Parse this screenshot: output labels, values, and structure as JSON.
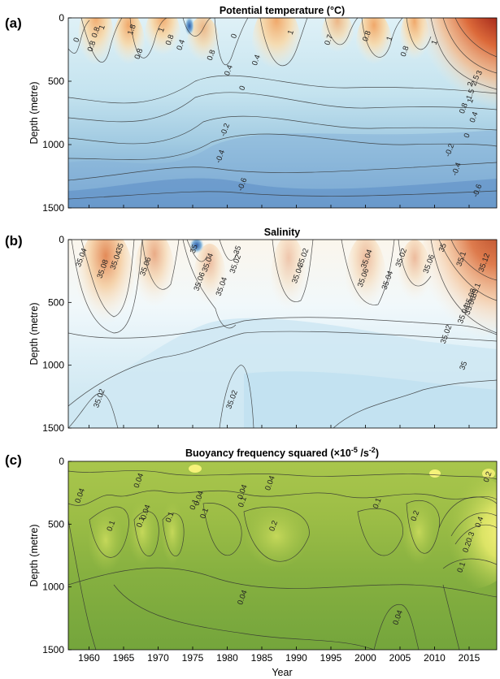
{
  "figure": {
    "xlabel": "Year"
  },
  "chart_data": [
    {
      "type": "heatmap",
      "panel_label": "(a)",
      "title": "Potential temperature (°C)",
      "ylabel": "Depth (metre)",
      "xlim": [
        1957,
        2019
      ],
      "ylim": [
        1500,
        0
      ],
      "xticks": [
        1960,
        1965,
        1970,
        1975,
        1980,
        1985,
        1990,
        1995,
        2000,
        2005,
        2010,
        2015
      ],
      "yticks": [
        0,
        500,
        1000,
        1500
      ],
      "colors": {
        "low": "#3f6fb5",
        "mid": "#eaf6fb",
        "high": "#7a1010"
      },
      "contour_labels": [
        {
          "text": "0",
          "year": 1958.5,
          "depth": 180
        },
        {
          "text": "0.8",
          "year": 1960.7,
          "depth": 230
        },
        {
          "text": "0.8",
          "year": 1961.3,
          "depth": 120
        },
        {
          "text": "1",
          "year": 1962.2,
          "depth": 80
        },
        {
          "text": "1.8",
          "year": 1966.5,
          "depth": 100
        },
        {
          "text": "0.8",
          "year": 1967.5,
          "depth": 290
        },
        {
          "text": "1",
          "year": 1970.8,
          "depth": 100
        },
        {
          "text": "0.8",
          "year": 1972,
          "depth": 180
        },
        {
          "text": "0.4",
          "year": 1973.6,
          "depth": 220
        },
        {
          "text": "0.8",
          "year": 1978,
          "depth": 300
        },
        {
          "text": "0.4",
          "year": 1980.5,
          "depth": 420
        },
        {
          "text": "0",
          "year": 1981.3,
          "depth": 150
        },
        {
          "text": "0",
          "year": 1982.5,
          "depth": 560
        },
        {
          "text": "0.4",
          "year": 1984.5,
          "depth": 340
        },
        {
          "text": "1",
          "year": 1989.5,
          "depth": 120
        },
        {
          "text": "0.7",
          "year": 1995,
          "depth": 180
        },
        {
          "text": "0.8",
          "year": 2000.5,
          "depth": 150
        },
        {
          "text": "1",
          "year": 2003.8,
          "depth": 170
        },
        {
          "text": "0.8",
          "year": 2006,
          "depth": 270
        },
        {
          "text": "1",
          "year": 2010.3,
          "depth": 200
        },
        {
          "text": "3",
          "year": 2016.8,
          "depth": 440
        },
        {
          "text": "2.5",
          "year": 2016.2,
          "depth": 500
        },
        {
          "text": "2",
          "year": 2015.5,
          "depth": 530
        },
        {
          "text": "1.5",
          "year": 2015.5,
          "depth": 610
        },
        {
          "text": "1",
          "year": 2015.5,
          "depth": 660
        },
        {
          "text": "0.8",
          "year": 2014.5,
          "depth": 720
        },
        {
          "text": "0.4",
          "year": 2016,
          "depth": 790
        },
        {
          "text": "0",
          "year": 2015,
          "depth": 935
        },
        {
          "text": "-0.2",
          "year": 2012.5,
          "depth": 1050
        },
        {
          "text": "-0.4",
          "year": 2013.5,
          "depth": 1200
        },
        {
          "text": "-0.6",
          "year": 2016.5,
          "depth": 1370
        },
        {
          "text": "-0.2",
          "year": 1980,
          "depth": 890
        },
        {
          "text": "-0.4",
          "year": 1979.3,
          "depth": 1100
        },
        {
          "text": "-0.6",
          "year": 1982.5,
          "depth": 1320
        }
      ]
    },
    {
      "type": "heatmap",
      "panel_label": "(b)",
      "title": "Salinity",
      "ylabel": "Depth (metre)",
      "xlim": [
        1957,
        2019
      ],
      "ylim": [
        1500,
        0
      ],
      "xticks": [
        1960,
        1965,
        1970,
        1975,
        1980,
        1985,
        1990,
        1995,
        2000,
        2005,
        2010,
        2015
      ],
      "yticks": [
        0,
        500,
        1000,
        1500
      ],
      "colors": {
        "low": "#2f5ea8",
        "mid": "#f3f9fb",
        "high": "#b84a28"
      },
      "contour_labels": [
        {
          "text": "35.04",
          "year": 1959.2,
          "depth": 150
        },
        {
          "text": "35.08",
          "year": 1962.3,
          "depth": 240
        },
        {
          "text": "35.04",
          "year": 1964.2,
          "depth": 170
        },
        {
          "text": "35",
          "year": 1964.8,
          "depth": 70
        },
        {
          "text": "35.06",
          "year": 1968.5,
          "depth": 220
        },
        {
          "text": "35",
          "year": 1975.5,
          "depth": 80
        },
        {
          "text": "35.04",
          "year": 1977.5,
          "depth": 190
        },
        {
          "text": "35.06",
          "year": 1976.3,
          "depth": 340
        },
        {
          "text": "35.04",
          "year": 1979.5,
          "depth": 380
        },
        {
          "text": "35.02",
          "year": 1981.5,
          "depth": 200
        },
        {
          "text": "35",
          "year": 1981.8,
          "depth": 90
        },
        {
          "text": "35.02",
          "year": 1991.3,
          "depth": 150
        },
        {
          "text": "35.04",
          "year": 1990.5,
          "depth": 280
        },
        {
          "text": "35.04",
          "year": 2000.5,
          "depth": 160
        },
        {
          "text": "35.06",
          "year": 2000,
          "depth": 310
        },
        {
          "text": "35.04",
          "year": 2003.5,
          "depth": 330
        },
        {
          "text": "35.02",
          "year": 2005.5,
          "depth": 150
        },
        {
          "text": "35.06",
          "year": 2009.5,
          "depth": 200
        },
        {
          "text": "35",
          "year": 2011.5,
          "depth": 70
        },
        {
          "text": "35.1",
          "year": 2014.2,
          "depth": 160
        },
        {
          "text": "35.12",
          "year": 2017.5,
          "depth": 190
        },
        {
          "text": "35.1",
          "year": 2016.3,
          "depth": 410
        },
        {
          "text": "35.08",
          "year": 2015.5,
          "depth": 470
        },
        {
          "text": "35.06",
          "year": 2015.5,
          "depth": 530
        },
        {
          "text": "35.04",
          "year": 2014.5,
          "depth": 600
        },
        {
          "text": "35.02",
          "year": 2012,
          "depth": 760
        },
        {
          "text": "35",
          "year": 2014.5,
          "depth": 1010
        },
        {
          "text": "35.02",
          "year": 1961.8,
          "depth": 1270
        },
        {
          "text": "35.02",
          "year": 1981,
          "depth": 1280
        }
      ]
    },
    {
      "type": "heatmap",
      "panel_label": "(c)",
      "title_prefix": "Buoyancy frequency squared (×10",
      "title_exponent": "-5",
      "title_suffix": " /s",
      "title_exponent2": "-2",
      "title_end": ")",
      "ylabel": "Depth (metre)",
      "xlim": [
        1957,
        2019
      ],
      "ylim": [
        1500,
        0
      ],
      "xticks": [
        1960,
        1965,
        1970,
        1975,
        1980,
        1985,
        1990,
        1995,
        2000,
        2005,
        2010,
        2015
      ],
      "yticks": [
        0,
        500,
        1000,
        1500
      ],
      "colors": {
        "low": "#6ea03c",
        "mid": "#a7c44a",
        "high": "#f6f27a"
      },
      "contour_labels": [
        {
          "text": "0.04",
          "year": 1959,
          "depth": 280
        },
        {
          "text": "0.04",
          "year": 1967.5,
          "depth": 160
        },
        {
          "text": "0.1",
          "year": 1963.5,
          "depth": 520
        },
        {
          "text": "0.04",
          "year": 1968.5,
          "depth": 410
        },
        {
          "text": "0.1",
          "year": 1967.8,
          "depth": 490
        },
        {
          "text": "0.1",
          "year": 1972,
          "depth": 450
        },
        {
          "text": "0.1",
          "year": 1975.5,
          "depth": 350
        },
        {
          "text": "0.04",
          "year": 1976.2,
          "depth": 300
        },
        {
          "text": "0.1",
          "year": 1977,
          "depth": 420
        },
        {
          "text": "0.04",
          "year": 1982.5,
          "depth": 250
        },
        {
          "text": "0.1",
          "year": 1982.5,
          "depth": 330
        },
        {
          "text": "0.04",
          "year": 1986.5,
          "depth": 180
        },
        {
          "text": "0.2",
          "year": 1987,
          "depth": 520
        },
        {
          "text": "0.1",
          "year": 2002,
          "depth": 340
        },
        {
          "text": "0.2",
          "year": 2007.5,
          "depth": 440
        },
        {
          "text": "0.4",
          "year": 2016.8,
          "depth": 490
        },
        {
          "text": "0.3",
          "year": 2015.5,
          "depth": 610
        },
        {
          "text": "0.2",
          "year": 2015,
          "depth": 690
        },
        {
          "text": "0.1",
          "year": 2014.2,
          "depth": 850
        },
        {
          "text": "0.2",
          "year": 2018,
          "depth": 130
        },
        {
          "text": "0.04",
          "year": 1982.5,
          "depth": 1090
        },
        {
          "text": "0.04",
          "year": 2005,
          "depth": 1250
        }
      ]
    }
  ]
}
